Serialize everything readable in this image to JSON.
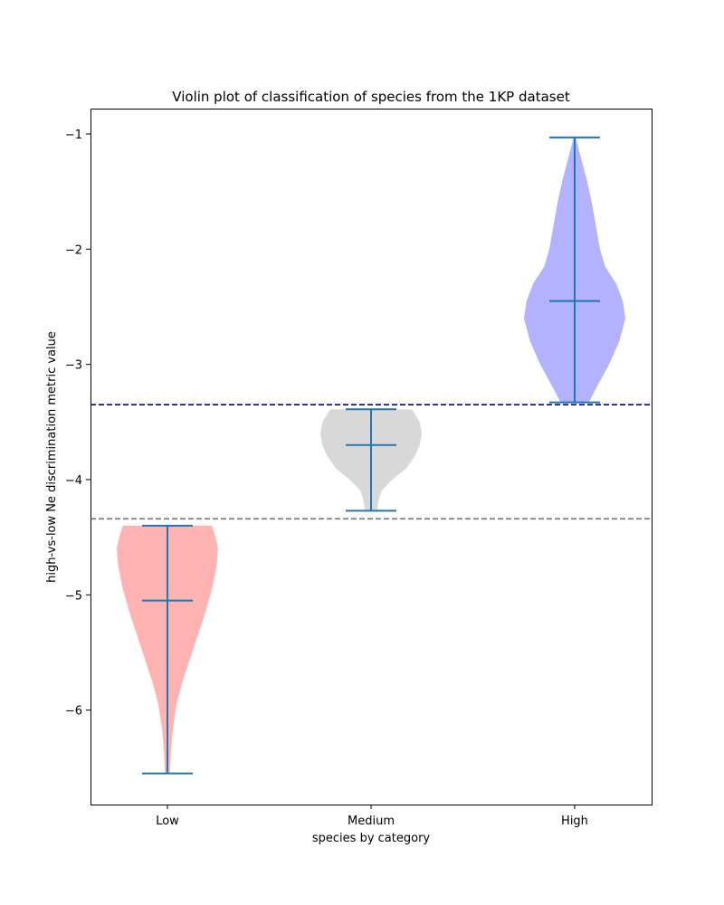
{
  "chart_data": {
    "type": "violin",
    "title": "Violin plot of classification of species from the 1KP dataset",
    "xlabel": "species by category",
    "ylabel": "high-vs-low Ne discrimination metric value",
    "categories": [
      "Low",
      "Medium",
      "High"
    ],
    "ylim": [
      -6.82,
      -0.78
    ],
    "yticks": [
      -6,
      -5,
      -4,
      -3,
      -2,
      -1
    ],
    "ytick_labels": [
      "−6",
      "−5",
      "−4",
      "−3",
      "−2",
      "−1"
    ],
    "grid": false,
    "line_color": "#1f77b4",
    "series": [
      {
        "category": "Low",
        "color": "#ffb2b2",
        "min": -6.55,
        "median": -5.05,
        "max": -4.4,
        "density": [
          [
            -6.55,
            0.05
          ],
          [
            -6.35,
            0.07
          ],
          [
            -6.15,
            0.11
          ],
          [
            -5.95,
            0.18
          ],
          [
            -5.75,
            0.3
          ],
          [
            -5.55,
            0.45
          ],
          [
            -5.35,
            0.6
          ],
          [
            -5.15,
            0.75
          ],
          [
            -4.95,
            0.88
          ],
          [
            -4.75,
            0.97
          ],
          [
            -4.6,
            1.0
          ],
          [
            -4.5,
            0.95
          ],
          [
            -4.4,
            0.88
          ]
        ]
      },
      {
        "category": "Medium",
        "color": "#d8d8d8",
        "min": -4.27,
        "median": -3.7,
        "max": -3.39,
        "density": [
          [
            -4.27,
            0.12
          ],
          [
            -4.2,
            0.14
          ],
          [
            -4.1,
            0.2
          ],
          [
            -4.0,
            0.42
          ],
          [
            -3.9,
            0.7
          ],
          [
            -3.8,
            0.86
          ],
          [
            -3.7,
            0.96
          ],
          [
            -3.6,
            1.0
          ],
          [
            -3.5,
            0.96
          ],
          [
            -3.42,
            0.85
          ],
          [
            -3.39,
            0.8
          ]
        ]
      },
      {
        "category": "High",
        "color": "#b2b2ff",
        "min": -3.33,
        "median": -2.45,
        "max": -1.03,
        "density": [
          [
            -3.33,
            0.28
          ],
          [
            -3.2,
            0.43
          ],
          [
            -3.0,
            0.68
          ],
          [
            -2.8,
            0.88
          ],
          [
            -2.6,
            1.0
          ],
          [
            -2.45,
            0.95
          ],
          [
            -2.3,
            0.82
          ],
          [
            -2.15,
            0.6
          ],
          [
            -2.0,
            0.5
          ],
          [
            -1.8,
            0.42
          ],
          [
            -1.6,
            0.34
          ],
          [
            -1.4,
            0.24
          ],
          [
            -1.2,
            0.12
          ],
          [
            -1.03,
            0.02
          ]
        ]
      }
    ],
    "reference_lines": [
      {
        "y": -3.35,
        "color": "#00008b",
        "style": "dashed"
      },
      {
        "y": -4.34,
        "color": "#808080",
        "style": "dashed"
      }
    ]
  }
}
